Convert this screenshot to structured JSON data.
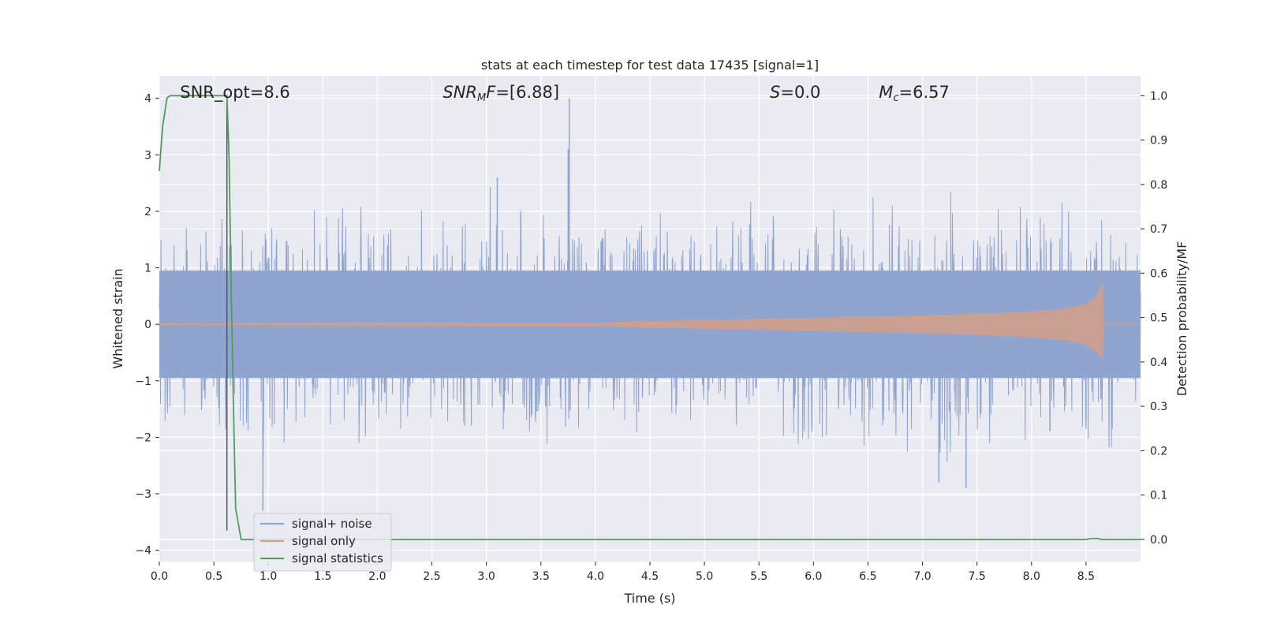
{
  "chart_data": {
    "type": "line",
    "title": "stats at each timestep for test data 17435 [signal=1]",
    "xlabel": "Time (s)",
    "ylabel_left": "Whitened strain",
    "ylabel_right": "Detection probability/MF",
    "xlim": [
      0.0,
      9.0
    ],
    "ylim_left": [
      -4.2,
      4.4
    ],
    "ylim_right": [
      -0.05,
      1.045
    ],
    "x_ticks": [
      0.0,
      0.5,
      1.0,
      1.5,
      2.0,
      2.5,
      3.0,
      3.5,
      4.0,
      4.5,
      5.0,
      5.5,
      6.0,
      6.5,
      7.0,
      7.5,
      8.0,
      8.5
    ],
    "x_tick_labels": [
      "0.0",
      "0.5",
      "1.0",
      "1.5",
      "2.0",
      "2.5",
      "3.0",
      "3.5",
      "4.0",
      "4.5",
      "5.0",
      "5.5",
      "6.0",
      "6.5",
      "7.0",
      "7.5",
      "8.0",
      "8.5"
    ],
    "y_left_ticks": [
      -4,
      -3,
      -2,
      -1,
      0,
      1,
      2,
      3,
      4
    ],
    "y_left_tick_labels": [
      "−4",
      "−3",
      "−2",
      "−1",
      "0",
      "1",
      "2",
      "3",
      "4"
    ],
    "y_right_ticks": [
      0.0,
      0.1,
      0.2,
      0.3,
      0.4,
      0.5,
      0.6,
      0.7,
      0.8,
      0.9,
      1.0
    ],
    "y_right_tick_labels": [
      "0.0",
      "0.1",
      "0.2",
      "0.3",
      "0.4",
      "0.5",
      "0.6",
      "0.7",
      "0.8",
      "0.9",
      "1.0"
    ],
    "grid": true,
    "legend_position": "lower-left",
    "annotations": [
      {
        "id": "snr-opt",
        "html": "SNR_opt=8.6",
        "x": 0.19
      },
      {
        "id": "snr-mf",
        "html": "<tspan font-style=\"italic\">SNR</tspan><tspan font-style=\"italic\" font-size=\"13\" dy=\"4\">M</tspan><tspan font-style=\"italic\" dy=\"-4\">F</tspan>=[6.88]",
        "x": 2.6
      },
      {
        "id": "s-value",
        "html": "<tspan font-style=\"italic\">S</tspan>=0.0",
        "x": 5.6
      },
      {
        "id": "mc-value",
        "html": "<tspan font-style=\"italic\">M</tspan><tspan font-style=\"italic\" font-size=\"13\" dy=\"4\">c</tspan><tspan dy=\"-4\">=6.57</tspan>",
        "x": 6.6
      }
    ],
    "detection_marker_x": 0.62,
    "series": [
      {
        "name": "signal+ noise",
        "color": "#8fa5cf",
        "axis": "left",
        "envelope_t": [
          0.0,
          0.25,
          0.5,
          0.75,
          1.0,
          1.25,
          1.5,
          1.75,
          2.0,
          2.25,
          2.5,
          2.75,
          3.0,
          3.25,
          3.5,
          3.75,
          4.0,
          4.25,
          4.5,
          4.75,
          5.0,
          5.25,
          5.5,
          5.75,
          6.0,
          6.25,
          6.5,
          6.75,
          7.0,
          7.25,
          7.5,
          7.75,
          8.0,
          8.25,
          8.5,
          8.75,
          9.0
        ],
        "envelope_upper": [
          1.6,
          2.3,
          2.4,
          2.2,
          2.1,
          2.4,
          2.2,
          2.3,
          2.1,
          2.2,
          2.5,
          2.0,
          2.6,
          2.2,
          2.3,
          2.3,
          2.2,
          2.1,
          2.3,
          2.2,
          2.1,
          2.2,
          2.5,
          2.1,
          2.2,
          2.3,
          2.4,
          2.2,
          2.1,
          2.5,
          2.2,
          2.4,
          2.3,
          2.2,
          2.2,
          2.1,
          1.6
        ],
        "envelope_lower": [
          -2.5,
          -2.0,
          -2.5,
          -2.2,
          -3.2,
          -2.0,
          -2.3,
          -2.0,
          -2.4,
          -2.0,
          -2.2,
          -2.1,
          -2.6,
          -2.2,
          -2.5,
          -2.4,
          -2.2,
          -2.0,
          -2.3,
          -2.4,
          -2.5,
          -2.2,
          -2.2,
          -2.4,
          -2.6,
          -2.3,
          -2.2,
          -2.4,
          -2.8,
          -2.9,
          -2.5,
          -2.2,
          -2.5,
          -2.4,
          -2.4,
          -2.7,
          -1.5
        ],
        "spikes": [
          [
            3.76,
            4.0
          ],
          [
            0.95,
            -3.3
          ],
          [
            3.75,
            3.1
          ],
          [
            3.1,
            2.6
          ],
          [
            7.15,
            -2.8
          ],
          [
            7.4,
            -2.9
          ]
        ]
      },
      {
        "name": "signal only",
        "color": "#d39e88",
        "axis": "left",
        "t": [
          0.0,
          4.0,
          4.5,
          5.0,
          5.5,
          6.0,
          6.5,
          7.0,
          7.5,
          8.0,
          8.3,
          8.5,
          8.6,
          8.65,
          8.66,
          9.0
        ],
        "amplitude": [
          0.01,
          0.02,
          0.05,
          0.07,
          0.09,
          0.11,
          0.13,
          0.15,
          0.18,
          0.22,
          0.27,
          0.35,
          0.5,
          0.72,
          0.0,
          0.0
        ]
      },
      {
        "name": "signal statistics",
        "color": "#4f9e5a",
        "axis": "right",
        "t": [
          0.0,
          0.03,
          0.07,
          0.1,
          0.15,
          0.3,
          0.5,
          0.6,
          0.62,
          0.64,
          0.66,
          0.68,
          0.7,
          0.75,
          0.8,
          1.0,
          2.0,
          3.0,
          4.0,
          5.0,
          6.0,
          7.0,
          8.0,
          8.5,
          8.55,
          8.6,
          8.65,
          9.0
        ],
        "values": [
          0.83,
          0.93,
          0.995,
          1.0,
          1.0,
          1.0,
          1.0,
          1.0,
          1.0,
          0.86,
          0.55,
          0.3,
          0.07,
          0.0,
          0.0,
          0.0,
          0.0,
          0.0,
          0.0,
          0.0,
          0.0,
          0.0,
          0.0,
          0.0,
          0.002,
          0.002,
          0.0,
          0.0
        ]
      }
    ]
  }
}
